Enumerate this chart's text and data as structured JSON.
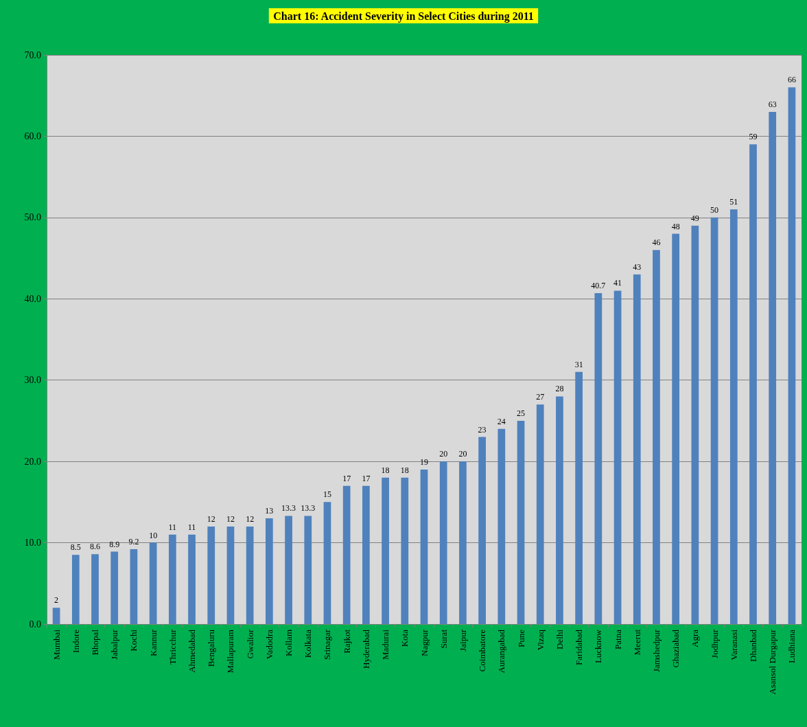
{
  "chart_data": {
    "type": "bar",
    "title": "Chart 16: Accident Severity in Select Cities during 2011",
    "categories": [
      "Mumbai",
      "Indore",
      "Bhopal",
      "Jabalpur",
      "Kochi",
      "Kannur",
      "Thricchur",
      "Ahmedabad",
      "Bengaluru",
      "Mallapuram",
      "Gwalior",
      "Vadodra",
      "Kollam",
      "Kolkata",
      "Srinagar",
      "Rajkot",
      "Hyderabad",
      "Madurai",
      "Kota",
      "Nagpur",
      "Surat",
      "Jaipur",
      "Coimbatore",
      "Aurangabad",
      "Pune",
      "Vizaq",
      "Delhi",
      "Faridabad",
      "Lucknow",
      "Patna",
      "Meerut",
      "Jamshedpur",
      "Ghaziabad",
      "Agra",
      "Jodhpur",
      "Varanasi",
      "Dhanbad",
      "Asansol Durgapur",
      "Ludhiana"
    ],
    "values": [
      2,
      8.5,
      8.6,
      8.9,
      9.2,
      10,
      11,
      11,
      12,
      12,
      12,
      13,
      13.3,
      13.3,
      15,
      17,
      17,
      18,
      18,
      19,
      20,
      20,
      23,
      24,
      25,
      27,
      28,
      31,
      40.7,
      41,
      43,
      46,
      48,
      49,
      50,
      51,
      59,
      63,
      66
    ],
    "color": "#4f81bd",
    "ylim": [
      0,
      70
    ],
    "yticks": [
      {
        "value": 0,
        "label": "0.0"
      },
      {
        "value": 10,
        "label": "10.0"
      },
      {
        "value": 20,
        "label": "20.0"
      },
      {
        "value": 30,
        "label": "30.0"
      },
      {
        "value": 40,
        "label": "40.0"
      },
      {
        "value": 50,
        "label": "50.0"
      },
      {
        "value": 60,
        "label": "60.0"
      },
      {
        "value": 70,
        "label": "70.0"
      }
    ],
    "grid": "y",
    "data_labels": true
  }
}
